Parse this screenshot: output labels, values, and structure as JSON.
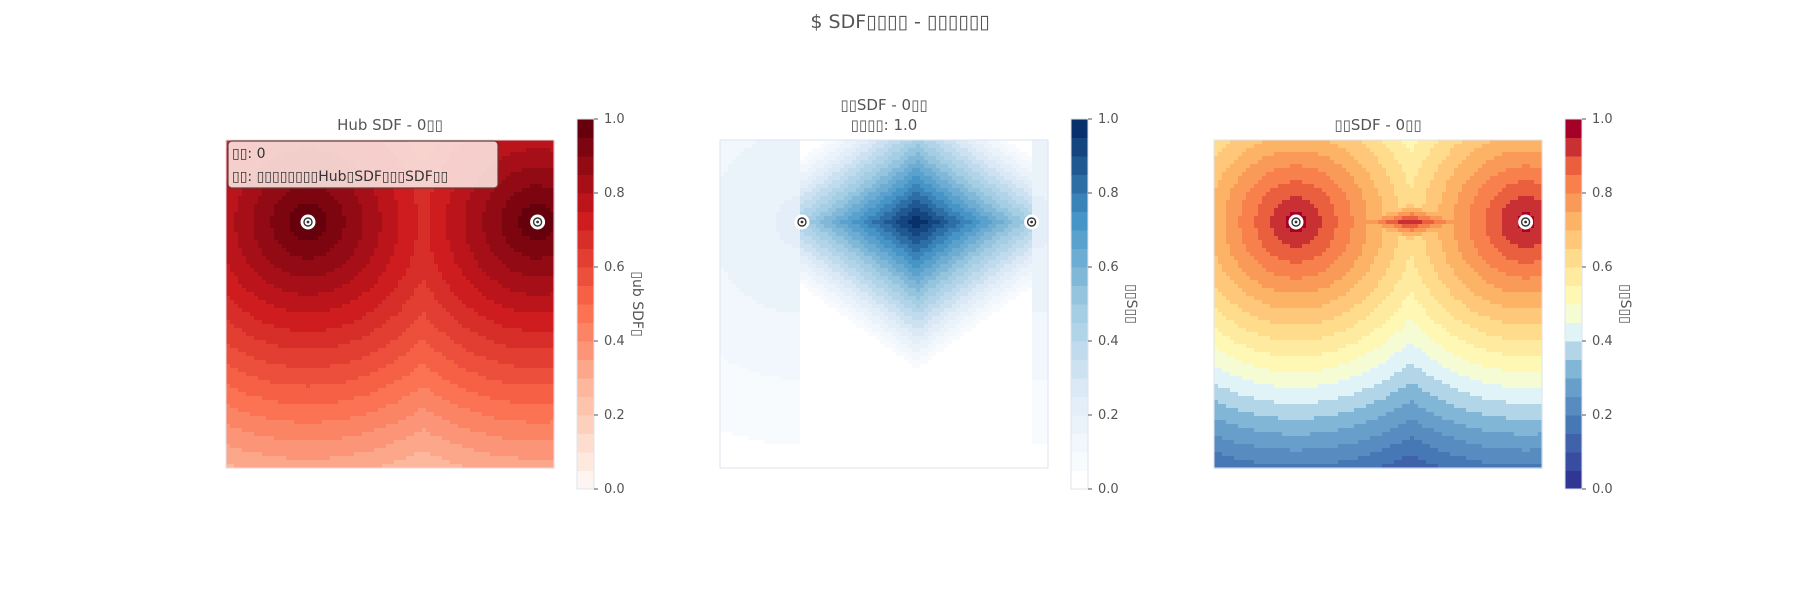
{
  "figure": {
    "suptitle": "$ SDF▯▯▯▯ - ▯▯▯▯▯▯"
  },
  "chart_data": [
    {
      "type": "heatmap",
      "title": "Hub SDF - 0▯▯",
      "colormap": "Reds",
      "value_range": [
        0,
        1
      ],
      "levels": 20,
      "colorbar_ticks": [
        "0.0",
        "0.2",
        "0.4",
        "0.6",
        "0.8",
        "1.0"
      ],
      "colorbar_label": "▯ub SDF▯",
      "points": [
        {
          "x": 0.25,
          "y": 0.75
        },
        {
          "x": 0.95,
          "y": 0.75
        }
      ],
      "annotation": [
        "▯▯: 0",
        "▯▯: ▯▯▯▯▯▯▯▯Hub▯SDF▯▯▯SDF▯▯"
      ],
      "field": "hub"
    },
    {
      "type": "heatmap",
      "title": "▯▯SDF - 0▯▯",
      "subtitle": "▯▯▯▯: 1.0",
      "colormap": "Blues",
      "value_range": [
        0,
        1
      ],
      "levels": 20,
      "colorbar_ticks": [
        "0.0",
        "0.2",
        "0.4",
        "0.6",
        "0.8",
        "1.0"
      ],
      "colorbar_label": "▯▯S▯▯",
      "points": [
        {
          "x": 0.25,
          "y": 0.75
        },
        {
          "x": 0.95,
          "y": 0.75
        }
      ],
      "field": "edge"
    },
    {
      "type": "heatmap",
      "title": "▯▯SDF - 0▯▯",
      "colormap": "RdYlBu_r",
      "value_range": [
        0,
        1
      ],
      "levels": 20,
      "colorbar_ticks": [
        "0.0",
        "0.2",
        "0.4",
        "0.6",
        "0.8",
        "1.0"
      ],
      "colorbar_label": "▯▯S▯▯",
      "points": [
        {
          "x": 0.25,
          "y": 0.75
        },
        {
          "x": 0.95,
          "y": 0.75
        }
      ],
      "field": "combined"
    }
  ]
}
